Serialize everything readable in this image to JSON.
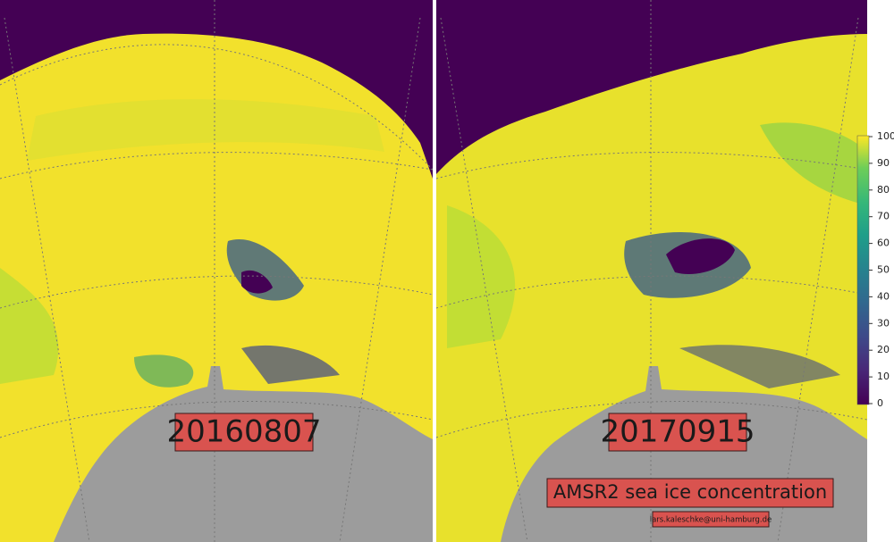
{
  "panels": [
    {
      "date": "20160807"
    },
    {
      "date": "20170915"
    }
  ],
  "caption": "AMSR2 sea ice concentration",
  "credit": "lars.kaleschke@uni-hamburg.de",
  "colorbar": {
    "range": [
      0,
      100
    ],
    "ticks": [
      0,
      10,
      20,
      30,
      40,
      50,
      60,
      70,
      80,
      90,
      100
    ]
  }
}
